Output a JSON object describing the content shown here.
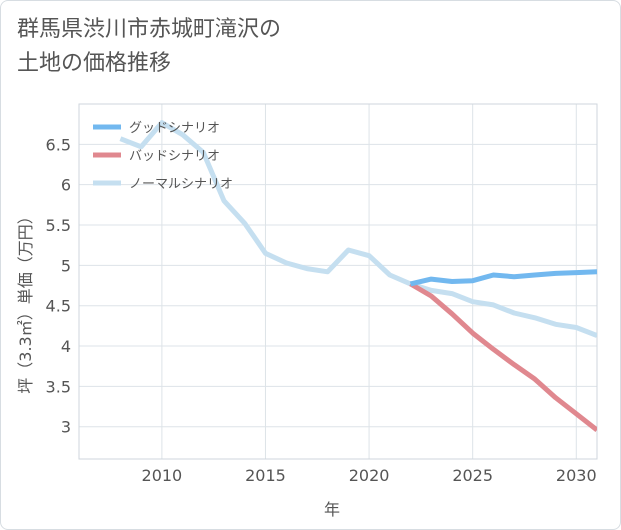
{
  "page": {
    "title_line1": "群馬県渋川市赤城町滝沢の",
    "title_line2": "土地の価格推移"
  },
  "chart_data": {
    "type": "line",
    "title": "群馬県渋川市赤城町滝沢の土地の価格推移",
    "xlabel": "年",
    "ylabel": "坪（3.3㎡）単価（万円）",
    "xlim": [
      2006,
      2031
    ],
    "ylim": [
      2.6,
      7.0
    ],
    "x_ticks": [
      2010,
      2015,
      2020,
      2025,
      2030
    ],
    "y_ticks": [
      3,
      3.5,
      4,
      4.5,
      5,
      5.5,
      6,
      6.5
    ],
    "y_tick_labels": [
      "3",
      "3.5",
      "4",
      "4.5",
      "5",
      "5.5",
      "6",
      "6.5"
    ],
    "grid": true,
    "legend_position": "top-left",
    "series": [
      {
        "name": "グッドシナリオ",
        "color": "#72b8ef",
        "x": [
          2022,
          2023,
          2024,
          2025,
          2026,
          2027,
          2028,
          2029,
          2030,
          2031
        ],
        "values": [
          4.77,
          4.83,
          4.8,
          4.81,
          4.88,
          4.86,
          4.88,
          4.9,
          4.91,
          4.92
        ]
      },
      {
        "name": "バッドシナリオ",
        "color": "#e0888f",
        "x": [
          2022,
          2023,
          2024,
          2025,
          2026,
          2027,
          2028,
          2029,
          2030,
          2031
        ],
        "values": [
          4.77,
          4.62,
          4.4,
          4.16,
          3.96,
          3.77,
          3.59,
          3.36,
          3.16,
          2.96
        ]
      },
      {
        "name": "ノーマルシナリオ",
        "color": "#c5dff0",
        "x": [
          2008,
          2009,
          2010,
          2011,
          2012,
          2013,
          2014,
          2015,
          2016,
          2017,
          2018,
          2019,
          2020,
          2021,
          2022,
          2023,
          2024,
          2025,
          2026,
          2027,
          2028,
          2029,
          2030,
          2031
        ],
        "values": [
          6.57,
          6.47,
          6.77,
          6.62,
          6.4,
          5.8,
          5.52,
          5.15,
          5.03,
          4.96,
          4.92,
          5.19,
          5.12,
          4.88,
          4.77,
          4.69,
          4.65,
          4.55,
          4.51,
          4.41,
          4.35,
          4.27,
          4.23,
          4.13
        ]
      }
    ]
  }
}
